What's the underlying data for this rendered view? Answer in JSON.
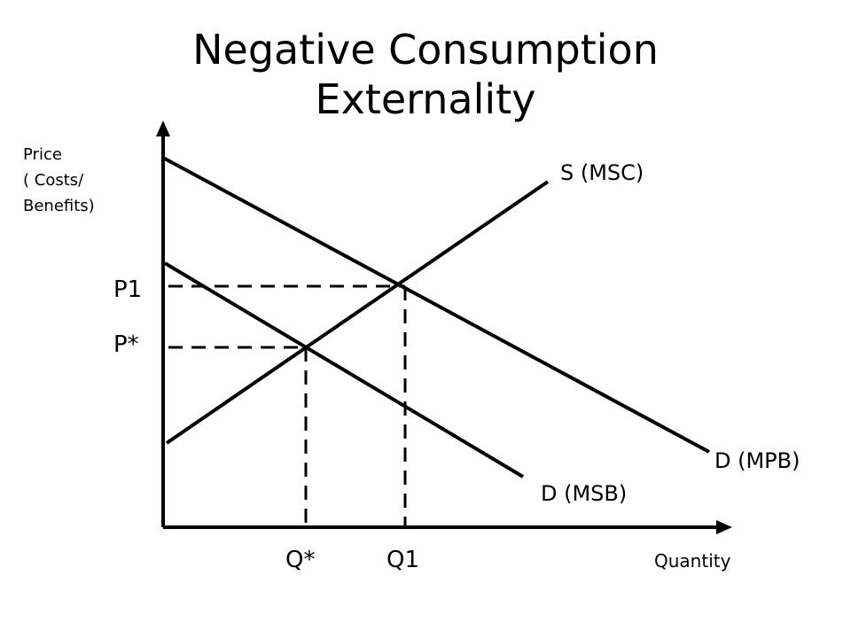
{
  "title": {
    "line1": "Negative Consumption",
    "line2": "Externality"
  },
  "axes": {
    "y_label_lines": [
      "Price",
      "( Costs/",
      "Benefits)"
    ],
    "x_label": "Quantity"
  },
  "curves": {
    "supply": "S (MSC)",
    "demand_private": "D (MPB)",
    "demand_social": "D (MSB)"
  },
  "markers": {
    "price_market": "P1",
    "price_optimal": "P*",
    "quantity_optimal": "Q*",
    "quantity_market": "Q1"
  }
}
